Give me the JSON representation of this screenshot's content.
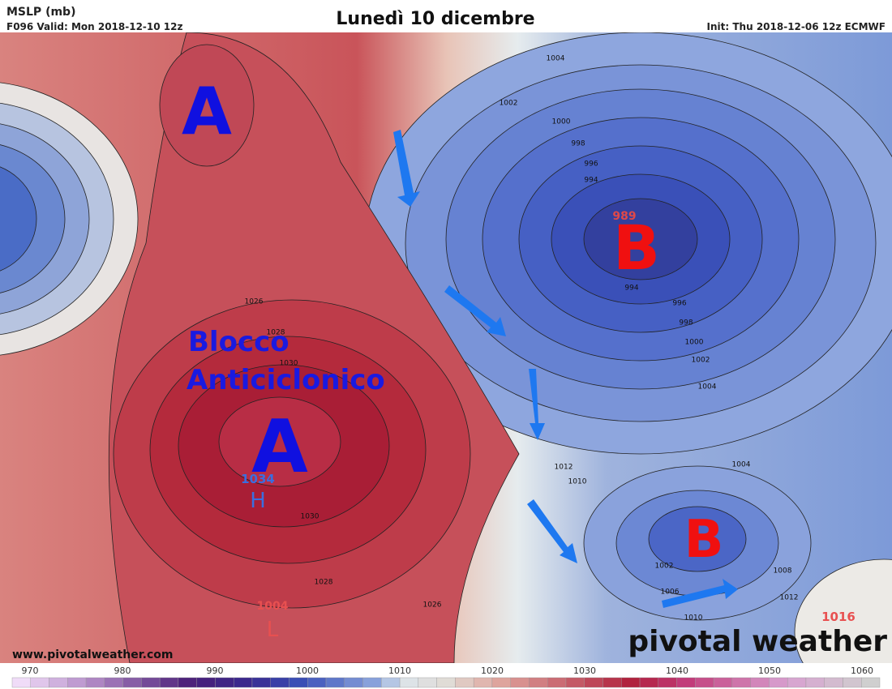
{
  "header": {
    "product": "MSLP (mb)",
    "valid": "F096 Valid: Mon 2018-12-10 12z",
    "heading": "Lunedì 10 dicembre",
    "init": "Init: Thu 2018-12-06 12z ECMWF"
  },
  "annotations": {
    "high_north": "A",
    "block_line1": "Blocco",
    "block_line2": "Anticiclonico",
    "high_center": "A",
    "low_north": "B",
    "low_south": "B"
  },
  "centers": {
    "low_value": "989",
    "high_value": "1034",
    "high_symbol": "H",
    "africa_low_value": "1004",
    "africa_low_symbol": "L",
    "east_value": "1016"
  },
  "contour_labels": [
    1004,
    1002,
    1000,
    998,
    996,
    994,
    994,
    996,
    998,
    1000,
    1002,
    1004,
    1026,
    1028,
    1030,
    1030,
    1028,
    1026,
    1012,
    1010,
    1004,
    1008,
    1012,
    1002,
    1006,
    1010
  ],
  "footer": {
    "website": "www.pivotalweather.com",
    "brand": "pivotal weather"
  },
  "colorbar": {
    "ticks": [
      970,
      980,
      990,
      1000,
      1010,
      1020,
      1030,
      1040,
      1050,
      1060
    ]
  }
}
